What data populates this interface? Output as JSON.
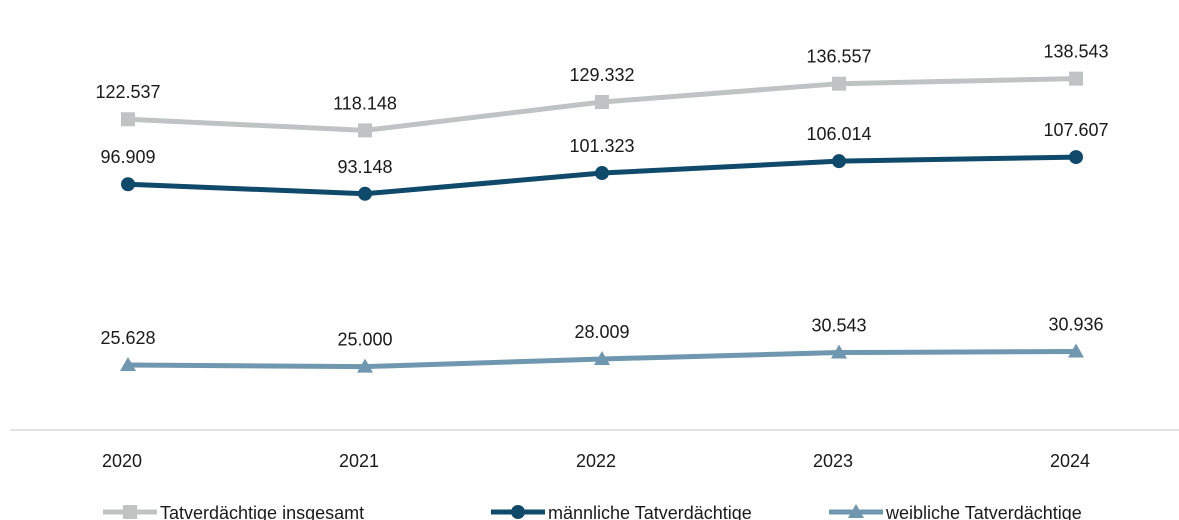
{
  "chart_data": {
    "type": "line",
    "categories": [
      "2020",
      "2021",
      "2022",
      "2023",
      "2024"
    ],
    "series": [
      {
        "name": "Tatverdächtige insgesamt",
        "values": [
          122537,
          118148,
          129332,
          136557,
          138543
        ],
        "labels": [
          "122.537",
          "118.148",
          "129.332",
          "136.557",
          "138.543"
        ],
        "color": "#c0c3c3",
        "marker": "square"
      },
      {
        "name": "männliche Tatverdächtige",
        "values": [
          96909,
          93148,
          101323,
          106014,
          107607
        ],
        "labels": [
          "96.909",
          "93.148",
          "101.323",
          "106.014",
          "107.607"
        ],
        "color": "#0f4a6b",
        "marker": "circle"
      },
      {
        "name": "weibliche Tatverdächtige",
        "values": [
          25628,
          25000,
          28009,
          30543,
          30936
        ],
        "labels": [
          "25.628",
          "25.000",
          "28.009",
          "30.543",
          "30.936"
        ],
        "color": "#6f97af",
        "marker": "triangle"
      }
    ],
    "title": "",
    "xlabel": "",
    "ylabel": "",
    "ylim": [
      0,
      150000
    ],
    "grid": false,
    "legend": "bottom",
    "axis_color": "#d9d9d9"
  }
}
